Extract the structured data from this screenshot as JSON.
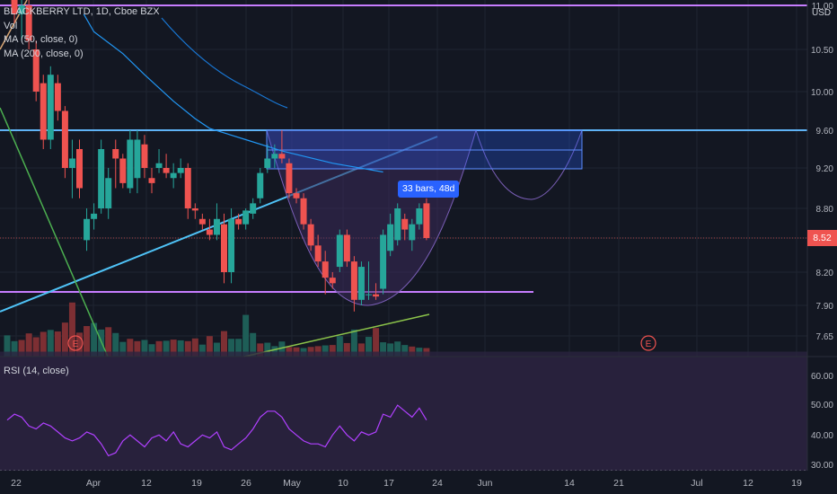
{
  "legend": {
    "symbol_line": "BLACKBERRY LTD, 1D, Cboe BZX",
    "vol": "Vol",
    "ma50": "MA (50, close, 0)",
    "ma200": "MA (200, close, 0)"
  },
  "rsi_legend": "RSI (14, close)",
  "currency": "USD",
  "last_price": "8.52",
  "bars_callout": "33 bars, 48d",
  "earnings_label": "E",
  "colors": {
    "background": "#131722",
    "up": "#26a69a",
    "down": "#ef5350",
    "horizontal_line_blue": "#5fb3f6",
    "horizontal_line_purple": "#c77dff",
    "trend_cyan": "#4fc3f7",
    "trend_green": "#4caf50",
    "ma50": "#2196f3",
    "rsi_line": "#b040ff",
    "rsi_band": "#2a2340"
  },
  "chart_data": [
    {
      "type": "candlestick",
      "title": "BLACKBERRY LTD, 1D, Cboe BZX",
      "y_ticks": [
        "11.00",
        "10.50",
        "10.00",
        "9.60",
        "9.20",
        "8.80",
        "8.52",
        "8.20",
        "7.90",
        "7.65"
      ],
      "x_ticks": [
        "22",
        "Apr",
        "12",
        "19",
        "26",
        "May",
        "10",
        "17",
        "24",
        "Jun",
        "14",
        "21",
        "Jul",
        "12",
        "19"
      ],
      "horizontal_levels": [
        11.0,
        9.6,
        8.07
      ],
      "candles": [
        {
          "o": 11.6,
          "h": 11.7,
          "l": 11.2,
          "c": 11.3
        },
        {
          "o": 11.3,
          "h": 11.4,
          "l": 10.8,
          "c": 10.9
        },
        {
          "o": 10.9,
          "h": 11.1,
          "l": 10.6,
          "c": 11.0
        },
        {
          "o": 11.0,
          "h": 11.1,
          "l": 10.5,
          "c": 10.6
        },
        {
          "o": 10.5,
          "h": 10.6,
          "l": 9.9,
          "c": 10.0
        },
        {
          "o": 10.1,
          "h": 10.2,
          "l": 9.4,
          "c": 9.5
        },
        {
          "o": 9.5,
          "h": 10.3,
          "l": 9.4,
          "c": 10.2
        },
        {
          "o": 10.1,
          "h": 10.2,
          "l": 9.7,
          "c": 9.8
        },
        {
          "o": 9.8,
          "h": 9.85,
          "l": 9.1,
          "c": 9.2
        },
        {
          "o": 9.2,
          "h": 9.5,
          "l": 8.9,
          "c": 9.3
        },
        {
          "o": 9.4,
          "h": 9.5,
          "l": 8.9,
          "c": 9.0
        },
        {
          "o": 8.5,
          "h": 8.8,
          "l": 8.4,
          "c": 8.7
        },
        {
          "o": 8.7,
          "h": 8.85,
          "l": 8.6,
          "c": 8.75
        },
        {
          "o": 8.8,
          "h": 9.5,
          "l": 8.75,
          "c": 9.4
        },
        {
          "o": 8.8,
          "h": 9.2,
          "l": 8.7,
          "c": 9.1
        },
        {
          "o": 9.4,
          "h": 9.5,
          "l": 9.0,
          "c": 9.3
        },
        {
          "o": 9.3,
          "h": 9.35,
          "l": 9.0,
          "c": 9.05
        },
        {
          "o": 9.0,
          "h": 9.6,
          "l": 8.95,
          "c": 9.5
        },
        {
          "o": 9.1,
          "h": 9.6,
          "l": 8.95,
          "c": 9.5
        },
        {
          "o": 9.45,
          "h": 9.55,
          "l": 9.1,
          "c": 9.2
        },
        {
          "o": 9.1,
          "h": 9.2,
          "l": 8.95,
          "c": 9.05
        },
        {
          "o": 9.2,
          "h": 9.4,
          "l": 9.15,
          "c": 9.25
        },
        {
          "o": 9.2,
          "h": 9.35,
          "l": 9.1,
          "c": 9.15
        },
        {
          "o": 9.1,
          "h": 9.25,
          "l": 9.0,
          "c": 9.15
        },
        {
          "o": 9.15,
          "h": 9.3,
          "l": 9.1,
          "c": 9.2
        },
        {
          "o": 9.2,
          "h": 9.25,
          "l": 8.7,
          "c": 8.8
        },
        {
          "o": 8.8,
          "h": 8.85,
          "l": 8.7,
          "c": 8.78
        },
        {
          "o": 8.7,
          "h": 8.75,
          "l": 8.6,
          "c": 8.65
        },
        {
          "o": 8.6,
          "h": 8.7,
          "l": 8.5,
          "c": 8.55
        },
        {
          "o": 8.55,
          "h": 8.85,
          "l": 8.5,
          "c": 8.7
        },
        {
          "o": 8.65,
          "h": 8.75,
          "l": 8.1,
          "c": 8.2
        },
        {
          "o": 8.2,
          "h": 8.8,
          "l": 8.1,
          "c": 8.7
        },
        {
          "o": 8.7,
          "h": 8.75,
          "l": 8.6,
          "c": 8.65
        },
        {
          "o": 8.65,
          "h": 8.8,
          "l": 8.6,
          "c": 8.78
        },
        {
          "o": 8.75,
          "h": 8.9,
          "l": 8.7,
          "c": 8.85
        },
        {
          "o": 8.9,
          "h": 9.2,
          "l": 8.85,
          "c": 9.15
        },
        {
          "o": 9.2,
          "h": 9.45,
          "l": 9.15,
          "c": 9.3
        },
        {
          "o": 9.3,
          "h": 9.45,
          "l": 9.2,
          "c": 9.35
        },
        {
          "o": 9.35,
          "h": 9.6,
          "l": 9.25,
          "c": 9.3
        },
        {
          "o": 9.25,
          "h": 9.3,
          "l": 8.9,
          "c": 8.95
        },
        {
          "o": 8.95,
          "h": 9.0,
          "l": 8.85,
          "c": 8.9
        },
        {
          "o": 8.9,
          "h": 8.95,
          "l": 8.6,
          "c": 8.65
        },
        {
          "o": 8.65,
          "h": 8.7,
          "l": 8.4,
          "c": 8.45
        },
        {
          "o": 8.45,
          "h": 8.55,
          "l": 8.25,
          "c": 8.3
        },
        {
          "o": 8.3,
          "h": 8.4,
          "l": 8.0,
          "c": 8.15
        },
        {
          "o": 8.15,
          "h": 8.2,
          "l": 8.05,
          "c": 8.1
        },
        {
          "o": 8.25,
          "h": 8.6,
          "l": 8.2,
          "c": 8.55
        },
        {
          "o": 8.55,
          "h": 8.6,
          "l": 8.25,
          "c": 8.3
        },
        {
          "o": 8.3,
          "h": 8.35,
          "l": 7.85,
          "c": 7.95
        },
        {
          "o": 7.95,
          "h": 8.3,
          "l": 7.9,
          "c": 8.25
        },
        {
          "o": 8.0,
          "h": 8.3,
          "l": 7.95,
          "c": 8.0
        },
        {
          "o": 8.0,
          "h": 8.1,
          "l": 7.95,
          "c": 7.98
        },
        {
          "o": 8.05,
          "h": 8.6,
          "l": 8.0,
          "c": 8.55
        },
        {
          "o": 8.4,
          "h": 8.75,
          "l": 8.35,
          "c": 8.65
        },
        {
          "o": 8.5,
          "h": 8.85,
          "l": 8.45,
          "c": 8.8
        },
        {
          "o": 8.7,
          "h": 8.75,
          "l": 8.5,
          "c": 8.6
        },
        {
          "o": 8.5,
          "h": 8.7,
          "l": 8.4,
          "c": 8.65
        },
        {
          "o": 8.65,
          "h": 8.85,
          "l": 8.6,
          "c": 8.8
        },
        {
          "o": 8.85,
          "h": 8.9,
          "l": 8.5,
          "c": 8.52
        }
      ],
      "volume": [
        {
          "v": 5.5,
          "up": true
        },
        {
          "v": 4.0,
          "up": true
        },
        {
          "v": 4.3,
          "up": false
        },
        {
          "v": 6.0,
          "up": false
        },
        {
          "v": 5.0,
          "up": false
        },
        {
          "v": 6.4,
          "up": false
        },
        {
          "v": 6.9,
          "up": true
        },
        {
          "v": 6.5,
          "up": false
        },
        {
          "v": 8.8,
          "up": false
        },
        {
          "v": 14.0,
          "up": false
        },
        {
          "v": 6.2,
          "up": false
        },
        {
          "v": 7.9,
          "up": false
        },
        {
          "v": 8.7,
          "up": true
        },
        {
          "v": 7.0,
          "up": true
        },
        {
          "v": 7.6,
          "up": false
        },
        {
          "v": 6.1,
          "up": true
        },
        {
          "v": 3.8,
          "up": true
        },
        {
          "v": 4.6,
          "up": false
        },
        {
          "v": 4.0,
          "up": false
        },
        {
          "v": 4.3,
          "up": true
        },
        {
          "v": 3.2,
          "up": true
        },
        {
          "v": 4.0,
          "up": false
        },
        {
          "v": 4.1,
          "up": true
        },
        {
          "v": 4.4,
          "up": false
        },
        {
          "v": 4.2,
          "up": true
        },
        {
          "v": 4.0,
          "up": false
        },
        {
          "v": 4.7,
          "up": false
        },
        {
          "v": 3.1,
          "up": true
        },
        {
          "v": 5.3,
          "up": false
        },
        {
          "v": 3.6,
          "up": true
        },
        {
          "v": 6.6,
          "up": false
        },
        {
          "v": 4.6,
          "up": true
        },
        {
          "v": 4.6,
          "up": true
        },
        {
          "v": 10.8,
          "up": true
        },
        {
          "v": 6.1,
          "up": true
        },
        {
          "v": 3.4,
          "up": false
        },
        {
          "v": 3.6,
          "up": true
        },
        {
          "v": 2.7,
          "up": true
        },
        {
          "v": 3.9,
          "up": true
        },
        {
          "v": 2.5,
          "up": false
        },
        {
          "v": 2.4,
          "up": false
        },
        {
          "v": 2.2,
          "up": true
        },
        {
          "v": 2.5,
          "up": false
        },
        {
          "v": 2.7,
          "up": false
        },
        {
          "v": 2.9,
          "up": true
        },
        {
          "v": 3.0,
          "up": false
        },
        {
          "v": 5.3,
          "up": true
        },
        {
          "v": 3.5,
          "up": false
        },
        {
          "v": 7.0,
          "up": true
        },
        {
          "v": 3.4,
          "up": false
        },
        {
          "v": 5.1,
          "up": true
        },
        {
          "v": 7.4,
          "up": false
        },
        {
          "v": 3.7,
          "up": true
        },
        {
          "v": 3.4,
          "up": true
        },
        {
          "v": 3.9,
          "up": true
        },
        {
          "v": 3.0,
          "up": true
        },
        {
          "v": 2.6,
          "up": false
        },
        {
          "v": 2.3,
          "up": true
        },
        {
          "v": 2.2,
          "up": false
        }
      ],
      "ma50": [
        [
          10.6,
          10.9
        ],
        [
          12.0,
          10.7
        ],
        [
          16.0,
          10.45
        ],
        [
          19.0,
          10.2
        ],
        [
          23.0,
          9.9
        ],
        [
          26.0,
          9.72
        ],
        [
          28.0,
          9.62
        ],
        [
          33.0,
          9.5
        ],
        [
          38.0,
          9.38
        ],
        [
          45.0,
          9.25
        ],
        [
          52.0,
          9.16
        ]
      ]
    },
    {
      "type": "line",
      "title": "RSI (14, close)",
      "y_ticks": [
        "60.00",
        "50.00",
        "40.00",
        "30.00"
      ],
      "ylim": [
        27,
        65
      ],
      "band": [
        30,
        70
      ],
      "values": [
        47,
        49,
        48,
        45,
        44,
        46,
        45,
        43,
        41,
        40,
        41,
        43,
        42,
        39,
        35,
        36,
        40,
        42,
        40,
        38,
        41,
        42,
        40,
        43,
        39,
        38,
        40,
        42,
        41,
        43,
        38,
        37,
        39,
        41,
        44,
        48,
        50,
        50,
        48,
        44,
        42,
        40,
        39,
        39,
        38,
        42,
        45,
        42,
        40,
        43,
        42,
        43,
        49,
        48,
        52,
        50,
        48,
        51,
        47
      ]
    }
  ]
}
